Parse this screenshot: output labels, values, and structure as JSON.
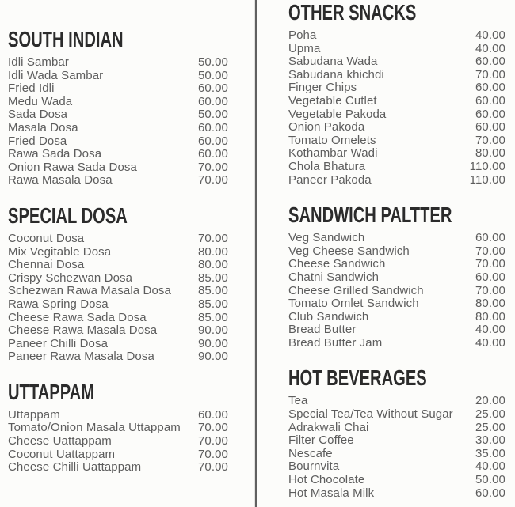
{
  "theme": {
    "background": "#fcfcfa",
    "heading_color": "#2b2b2b",
    "item_color": "#5d5d5d",
    "divider_color": "#606060"
  },
  "menu": {
    "columns": [
      {
        "id": "left",
        "sections": [
          {
            "title": "SOUTH INDIAN",
            "items": [
              {
                "name": "Idli Sambar",
                "price": "50.00"
              },
              {
                "name": "Idli Wada Sambar",
                "price": "50.00"
              },
              {
                "name": "Fried Idli",
                "price": "60.00"
              },
              {
                "name": "Medu Wada",
                "price": "60.00"
              },
              {
                "name": "Sada Dosa",
                "price": "50.00"
              },
              {
                "name": "Masala Dosa",
                "price": "60.00"
              },
              {
                "name": "Fried Dosa",
                "price": "60.00"
              },
              {
                "name": "Rawa Sada Dosa",
                "price": "60.00"
              },
              {
                "name": "Onion Rawa Sada Dosa",
                "price": "70.00"
              },
              {
                "name": "Rawa Masala Dosa",
                "price": "70.00"
              }
            ]
          },
          {
            "title": "SPECIAL DOSA",
            "items": [
              {
                "name": "Coconut Dosa",
                "price": "70.00"
              },
              {
                "name": "Mix Vegitable Dosa",
                "price": "80.00"
              },
              {
                "name": "Chennai Dosa",
                "price": "80.00"
              },
              {
                "name": "Crispy Schezwan Dosa",
                "price": "85.00"
              },
              {
                "name": "Schezwan Rawa Masala Dosa",
                "price": "85.00"
              },
              {
                "name": "Rawa Spring Dosa",
                "price": "85.00"
              },
              {
                "name": "Cheese Rawa Sada Dosa",
                "price": "85.00"
              },
              {
                "name": "Cheese Rawa Masala Dosa",
                "price": "90.00"
              },
              {
                "name": "Paneer Chilli Dosa",
                "price": "90.00"
              },
              {
                "name": "Paneer Rawa Masala Dosa",
                "price": "90.00"
              }
            ]
          },
          {
            "title": "UTTAPPAM",
            "items": [
              {
                "name": "Uttappam",
                "price": "60.00"
              },
              {
                "name": "Tomato/Onion Masala Uttappam",
                "price": "70.00"
              },
              {
                "name": "Cheese Uattappam",
                "price": "70.00"
              },
              {
                "name": "Coconut Uattappam",
                "price": "70.00"
              },
              {
                "name": "Cheese Chilli Uattappam",
                "price": "70.00"
              }
            ]
          }
        ]
      },
      {
        "id": "right",
        "sections": [
          {
            "title": "OTHER SNACKS",
            "items": [
              {
                "name": "Poha",
                "price": "40.00"
              },
              {
                "name": "Upma",
                "price": "40.00"
              },
              {
                "name": "Sabudana Wada",
                "price": "60.00"
              },
              {
                "name": "Sabudana khichdi",
                "price": "70.00"
              },
              {
                "name": "Finger Chips",
                "price": "60.00"
              },
              {
                "name": "Vegetable Cutlet",
                "price": "60.00"
              },
              {
                "name": "Vegetable Pakoda",
                "price": "60.00"
              },
              {
                "name": "Onion Pakoda",
                "price": "60.00"
              },
              {
                "name": "Tomato Omelets",
                "price": "70.00"
              },
              {
                "name": "Kothambar Wadi",
                "price": "80.00"
              },
              {
                "name": "Chola Bhatura",
                "price": "110.00"
              },
              {
                "name": "Paneer Pakoda",
                "price": "110.00"
              }
            ]
          },
          {
            "title": "SANDWICH PALTTER",
            "items": [
              {
                "name": "Veg Sandwich",
                "price": "60.00"
              },
              {
                "name": "Veg Cheese Sandwich",
                "price": "70.00"
              },
              {
                "name": "Cheese Sandwich",
                "price": "70.00"
              },
              {
                "name": "Chatni Sandwich",
                "price": "60.00"
              },
              {
                "name": "Cheese Grilled Sandwich",
                "price": "70.00"
              },
              {
                "name": "Tomato Omlet Sandwich",
                "price": "80.00"
              },
              {
                "name": "Club Sandwich",
                "price": "80.00"
              },
              {
                "name": "Bread Butter",
                "price": "40.00"
              },
              {
                "name": "Bread Butter Jam",
                "price": "40.00"
              }
            ]
          },
          {
            "title": "HOT BEVERAGES",
            "items": [
              {
                "name": "Tea",
                "price": "20.00"
              },
              {
                "name": "Special Tea/Tea Without Sugar",
                "price": "25.00"
              },
              {
                "name": "Adrakwali Chai",
                "price": "25.00"
              },
              {
                "name": "Filter Coffee",
                "price": "30.00"
              },
              {
                "name": "Nescafe",
                "price": "35.00"
              },
              {
                "name": "Bournvita",
                "price": "40.00"
              },
              {
                "name": "Hot Chocolate",
                "price": "50.00"
              },
              {
                "name": "Hot Masala Milk",
                "price": "60.00"
              }
            ]
          }
        ]
      }
    ]
  }
}
